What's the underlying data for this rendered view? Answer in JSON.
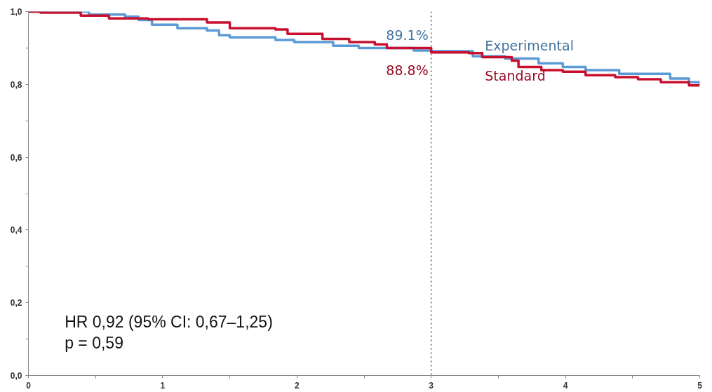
{
  "chart_data": {
    "type": "step",
    "series": [
      {
        "name": "Experimental",
        "color": "#5b9bd5",
        "x": [
          0,
          0.45,
          0.72,
          0.82,
          0.92,
          1.11,
          1.33,
          1.42,
          1.5,
          1.84,
          1.98,
          2.27,
          2.46,
          2.87,
          3.0,
          3.31,
          3.55,
          3.8,
          3.98,
          4.15,
          4.4,
          4.78,
          4.92,
          5.0
        ],
        "values": [
          1.0,
          0.992,
          0.986,
          0.977,
          0.964,
          0.954,
          0.948,
          0.935,
          0.929,
          0.922,
          0.916,
          0.906,
          0.9,
          0.893,
          0.891,
          0.877,
          0.871,
          0.858,
          0.848,
          0.839,
          0.829,
          0.816,
          0.806,
          0.8
        ]
      },
      {
        "name": "Standard",
        "color": "#c8102e",
        "x": [
          0,
          0.09,
          0.39,
          0.6,
          0.89,
          1.33,
          1.5,
          1.84,
          1.93,
          2.19,
          2.39,
          2.58,
          2.67,
          3.0,
          3.28,
          3.38,
          3.6,
          3.65,
          3.82,
          3.98,
          4.15,
          4.37,
          4.54,
          4.71,
          4.92,
          5.0
        ],
        "values": [
          1.0,
          0.997,
          0.989,
          0.981,
          0.979,
          0.97,
          0.954,
          0.951,
          0.939,
          0.925,
          0.916,
          0.91,
          0.9,
          0.888,
          0.886,
          0.875,
          0.865,
          0.848,
          0.839,
          0.835,
          0.825,
          0.82,
          0.814,
          0.806,
          0.797,
          0.797
        ]
      }
    ],
    "xlim": [
      0,
      5
    ],
    "ylim": [
      0,
      1
    ],
    "xticks": [
      0,
      {
        "value": 0.5,
        "label": null
      },
      1,
      {
        "value": 1.5,
        "label": null
      },
      2,
      {
        "value": 2.5,
        "label": null
      },
      3,
      {
        "value": 3.5,
        "label": null
      },
      4,
      {
        "value": 4.5,
        "label": null
      },
      5
    ],
    "yticks": [
      {
        "value": 0,
        "label": "0,0"
      },
      {
        "value": 0.1,
        "label": null
      },
      {
        "value": 0.2,
        "label": "0,2"
      },
      {
        "value": 0.3,
        "label": null
      },
      {
        "value": 0.4,
        "label": "0,4"
      },
      {
        "value": 0.5,
        "label": null
      },
      {
        "value": 0.6,
        "label": "0,6"
      },
      {
        "value": 0.7,
        "label": null
      },
      {
        "value": 0.8,
        "label": "0,8"
      },
      {
        "value": 0.9,
        "label": null
      },
      {
        "value": 1.0,
        "label": "1,0"
      }
    ],
    "ref_lines": [
      {
        "axis": "x",
        "value": 3,
        "color": "#555555",
        "line_style": "dotted"
      }
    ],
    "annotations": [
      {
        "text": "89.1%",
        "x": 3,
        "y": 0.891
      },
      {
        "text": "88.8%",
        "x": 3,
        "y": 0.888
      },
      "HR 0,92 (95% CI: 0,67–1,25)",
      "p = 0,59"
    ]
  }
}
